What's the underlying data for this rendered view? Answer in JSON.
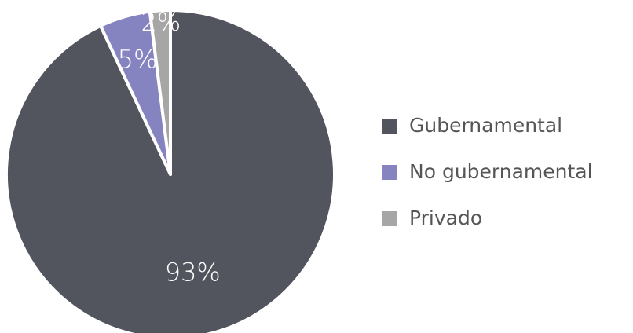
{
  "chart_data": {
    "type": "pie",
    "categories": [
      "Gubernamental",
      "No gubernamental",
      "Privado"
    ],
    "values": [
      93,
      5,
      2
    ],
    "value_labels": [
      "93%",
      "5%",
      "2%"
    ],
    "colors": [
      "#52545e",
      "#8684c0",
      "#a6a6a6"
    ],
    "legend": "right"
  }
}
